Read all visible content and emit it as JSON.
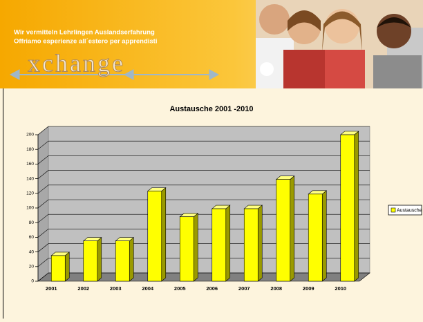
{
  "header": {
    "line1": "Wir vermitteln Lehrlingen Auslandserfahrung",
    "line2": "Offriamo esperienze all´estero per apprendisti",
    "logo": "xchange"
  },
  "chart_data": {
    "type": "bar",
    "title": "Austausche 2001 -2010",
    "categories": [
      "2001",
      "2002",
      "2003",
      "2004",
      "2005",
      "2006",
      "2007",
      "2008",
      "2009",
      "2010"
    ],
    "series": [
      {
        "name": "Austausche",
        "color": "#ffff00",
        "values": [
          35,
          55,
          55,
          123,
          88,
          99,
          99,
          139,
          119,
          200
        ]
      }
    ],
    "ylim": [
      0,
      200
    ],
    "yticks": [
      0,
      20,
      40,
      60,
      80,
      100,
      120,
      140,
      160,
      180,
      200
    ],
    "grid": true,
    "legend": "right"
  }
}
